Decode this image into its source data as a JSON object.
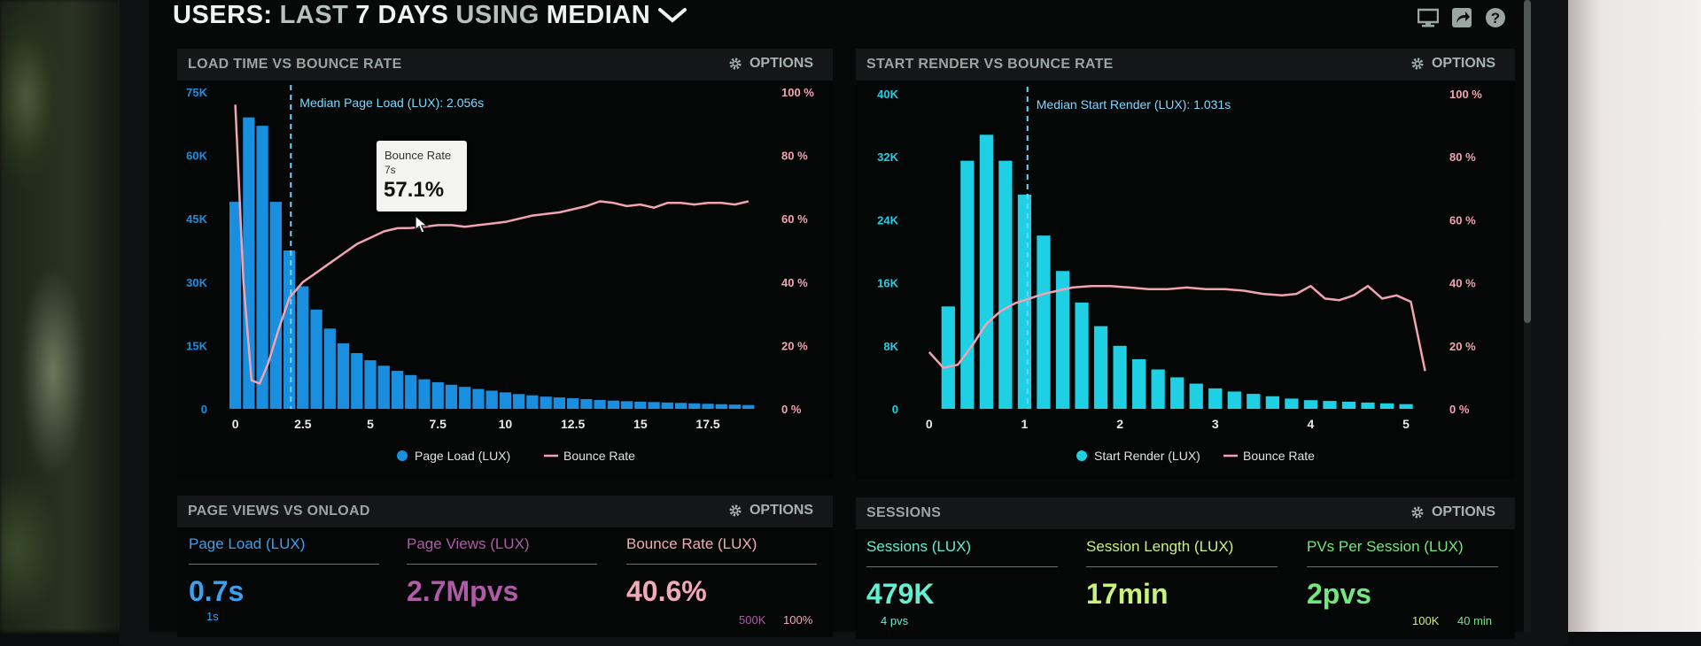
{
  "header": {
    "users": "USERS:",
    "last": "LAST",
    "days": "7 DAYS",
    "using": "USING",
    "median": "MEDIAN"
  },
  "options_label": "OPTIONS",
  "panels": {
    "load": {
      "title": "LOAD TIME VS BOUNCE RATE"
    },
    "render": {
      "title": "START RENDER VS BOUNCE RATE"
    },
    "pageviews": {
      "title": "PAGE VIEWS VS ONLOAD"
    },
    "sessions": {
      "title": "SESSIONS"
    }
  },
  "tooltip": {
    "title": "Bounce Rate",
    "sub": "7s",
    "value": "57.1%"
  },
  "metrics_left": [
    {
      "label": "Page Load (LUX)",
      "value": "0.7s",
      "color": "#3aa0f0",
      "sub": "1s"
    },
    {
      "label": "Page Views (LUX)",
      "value": "2.7Mpvs",
      "color": "#b05aa8",
      "sub": "500K"
    },
    {
      "label": "Bounce Rate (LUX)",
      "value": "40.6%",
      "color": "#f3a9b8",
      "sub": "100%"
    }
  ],
  "metrics_right": [
    {
      "label": "Sessions (LUX)",
      "value": "479K",
      "color": "#62f0d0",
      "sub": "4 pvs"
    },
    {
      "label": "Session Length (LUX)",
      "value": "17min",
      "color": "#c8f47c",
      "sub": "100K"
    },
    {
      "label": "PVs Per Session (LUX)",
      "value": "2pvs",
      "color": "#72e87c",
      "sub": "40 min"
    }
  ],
  "chart_data": [
    {
      "type": "bar",
      "title": "LOAD TIME VS BOUNCE RATE",
      "annotation": "Median Page Load (LUX): 2.056s",
      "median_x": 2.056,
      "x_ticks": [
        "0",
        "2.5",
        "5",
        "7.5",
        "10",
        "12.5",
        "15",
        "17.5"
      ],
      "x_tick_values": [
        0,
        2.5,
        5,
        7.5,
        10,
        12.5,
        15,
        17.5
      ],
      "xlim": [
        -0.25,
        19.5
      ],
      "bar_width": 0.5,
      "y_left_ticks": [
        "0",
        "15K",
        "30K",
        "45K",
        "60K",
        "75K"
      ],
      "y_left_values": [
        0,
        15000,
        30000,
        45000,
        60000,
        75000
      ],
      "ylim_left": [
        0,
        75000
      ],
      "y_right_ticks": [
        "0 %",
        "20 %",
        "40 %",
        "60 %",
        "80 %",
        "100 %"
      ],
      "y_right_values": [
        0,
        20,
        40,
        60,
        80,
        100
      ],
      "ylim_right": [
        0,
        100
      ],
      "legend": [
        "Page Load (LUX)",
        "Bounce Rate"
      ],
      "bar_color": "#1a8fe0",
      "line_color": "#f2a3b3",
      "series": [
        {
          "name": "Page Load (LUX)",
          "x": [
            0,
            0.5,
            1,
            1.5,
            2,
            2.5,
            3,
            3.5,
            4,
            4.5,
            5,
            5.5,
            6,
            6.5,
            7,
            7.5,
            8,
            8.5,
            9,
            9.5,
            10,
            10.5,
            11,
            11.5,
            12,
            12.5,
            13,
            13.5,
            14,
            14.5,
            15,
            15.5,
            16,
            16.5,
            17,
            17.5,
            18,
            18.5,
            19
          ],
          "values": [
            49000,
            69000,
            67000,
            49000,
            37500,
            29000,
            23500,
            19000,
            15500,
            13200,
            11500,
            10200,
            9000,
            8000,
            7000,
            6300,
            5700,
            5200,
            4700,
            4300,
            3900,
            3500,
            3200,
            2900,
            2700,
            2500,
            2300,
            2100,
            1950,
            1800,
            1700,
            1600,
            1500,
            1400,
            1300,
            1200,
            1100,
            1000,
            900
          ]
        },
        {
          "name": "Bounce Rate",
          "x": [
            0,
            0.3,
            0.6,
            0.9,
            1.2,
            1.6,
            2,
            2.5,
            3,
            3.5,
            4,
            4.5,
            5,
            5.5,
            6,
            6.5,
            7,
            7.5,
            8,
            8.5,
            9,
            9.5,
            10,
            10.5,
            11,
            11.5,
            12,
            12.5,
            13,
            13.5,
            14,
            14.5,
            15,
            15.5,
            16,
            16.5,
            17,
            17.5,
            18,
            18.5,
            19
          ],
          "values": [
            96,
            40,
            9,
            8,
            14,
            25,
            35,
            40,
            43,
            46,
            49,
            52,
            54,
            56,
            57,
            57.1,
            57.5,
            58,
            58,
            57.5,
            58,
            58.5,
            59,
            60,
            61,
            61.5,
            62,
            63,
            64,
            65.5,
            65,
            64,
            64.5,
            63.5,
            65,
            65,
            64.5,
            65,
            65,
            64.5,
            65.5
          ]
        }
      ]
    },
    {
      "type": "bar",
      "title": "START RENDER VS BOUNCE RATE",
      "annotation": "Median Start Render (LUX): 1.031s",
      "median_x": 1.031,
      "x_ticks": [
        "0",
        "1",
        "2",
        "3",
        "4",
        "5"
      ],
      "x_tick_values": [
        0,
        1,
        2,
        3,
        4,
        5
      ],
      "xlim": [
        -0.1,
        5.25
      ],
      "bar_width": 0.16,
      "y_left_ticks": [
        "0",
        "8K",
        "16K",
        "24K",
        "32K",
        "40K"
      ],
      "y_left_values": [
        0,
        8000,
        16000,
        24000,
        32000,
        40000
      ],
      "ylim_left": [
        0,
        40000
      ],
      "y_right_ticks": [
        "0 %",
        "20 %",
        "40 %",
        "60 %",
        "80 %",
        "100 %"
      ],
      "y_right_values": [
        0,
        20,
        40,
        60,
        80,
        100
      ],
      "ylim_right": [
        0,
        100
      ],
      "legend": [
        "Start Render (LUX)",
        "Bounce Rate"
      ],
      "bar_color": "#1fd0e4",
      "line_color": "#f2a3b3",
      "series": [
        {
          "name": "Start Render (LUX)",
          "x": [
            0.2,
            0.4,
            0.6,
            0.8,
            1.0,
            1.2,
            1.4,
            1.6,
            1.8,
            2.0,
            2.2,
            2.4,
            2.6,
            2.8,
            3.0,
            3.2,
            3.4,
            3.6,
            3.8,
            4.0,
            4.2,
            4.4,
            4.6,
            4.8,
            5.0
          ],
          "values": [
            13000,
            31500,
            34800,
            31500,
            27200,
            22000,
            17500,
            13500,
            10500,
            8000,
            6300,
            5000,
            4000,
            3200,
            2600,
            2200,
            1900,
            1600,
            1300,
            1100,
            1000,
            900,
            800,
            700,
            600
          ]
        },
        {
          "name": "Bounce Rate",
          "x": [
            0,
            0.15,
            0.3,
            0.45,
            0.6,
            0.75,
            0.9,
            1.05,
            1.2,
            1.35,
            1.5,
            1.7,
            1.9,
            2.1,
            2.3,
            2.5,
            2.7,
            2.9,
            3.1,
            3.3,
            3.5,
            3.7,
            3.85,
            4.0,
            4.15,
            4.3,
            4.45,
            4.6,
            4.75,
            4.9,
            5.05,
            5.2
          ],
          "values": [
            18,
            13,
            14,
            20,
            27,
            31,
            33.5,
            35,
            36.5,
            37.5,
            38.5,
            39,
            39,
            38.5,
            38,
            38,
            38.5,
            38,
            38,
            37.5,
            36.5,
            36,
            36.5,
            39,
            35,
            34.5,
            36,
            39,
            35,
            36,
            34,
            12
          ]
        }
      ]
    }
  ]
}
